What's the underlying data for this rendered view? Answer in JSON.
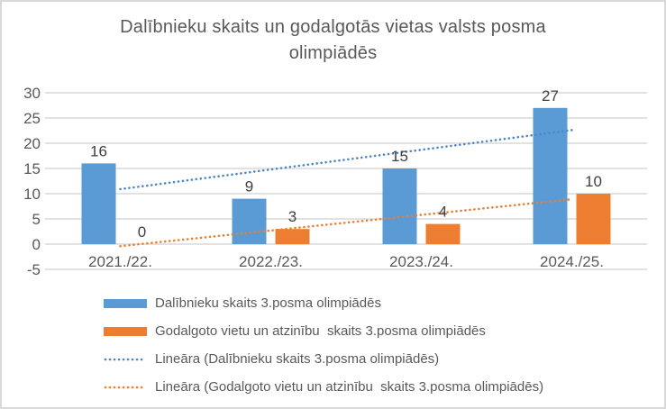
{
  "frame": {
    "background": "#FFFFFF",
    "border_color": "#D9D9D9"
  },
  "title": {
    "full": "Dalībnieku skaits un godalgotās vietas valsts posma olimpiādēs",
    "line1": "Dalībnieku skaits un godalgotās vietas valsts posma",
    "line2": "olimpiādēs",
    "color": "#595959"
  },
  "chart_data": {
    "type": "bar",
    "title": "Dalībnieku skaits un godalgotās vietas valsts posma olimpiādēs",
    "categories": [
      "2021./22.",
      "2022./23.",
      "2023./24.",
      "2024./25."
    ],
    "series": [
      {
        "name": "Dalībnieku skaits 3.posma olimpiādēs",
        "color": "#5B9BD5",
        "values": [
          16,
          9,
          15,
          27
        ]
      },
      {
        "name": "Godalgoto vietu un atzinību  skaits 3.posma olimpiādēs",
        "color": "#ED7D31",
        "values": [
          0,
          3,
          4,
          10
        ]
      }
    ],
    "trendlines": [
      {
        "name": "Lineāra (Dalībnieku skaits 3.posma olimpiādēs)",
        "series_index": 0,
        "fit": "linear",
        "style": "dotted",
        "color": "#4E87C8"
      },
      {
        "name": "Lineāra (Godalgoto vietu un atzinību  skaits 3.posma olimpiādēs)",
        "series_index": 1,
        "fit": "linear",
        "style": "dotted",
        "color": "#ED7D31"
      }
    ],
    "ylim": [
      -5,
      30
    ],
    "yticks": [
      30,
      25,
      20,
      15,
      10,
      5,
      0,
      -5
    ],
    "grid": true,
    "gridline_color": "#D9D9D9",
    "tick_label_color": "#595959",
    "category_label_color": "#595959",
    "data_labels_shown": true,
    "data_label_color": "#404040",
    "legend_position": "bottom-left",
    "xlabel": "",
    "ylabel": ""
  },
  "legend": {
    "items": [
      {
        "label": "Dalībnieku skaits 3.posma olimpiādēs",
        "swatch": "bar",
        "color": "#5B9BD5"
      },
      {
        "label": "Godalgoto vietu un atzinību  skaits 3.posma olimpiādēs",
        "swatch": "bar",
        "color": "#ED7D31"
      },
      {
        "label": "Lineāra (Dalībnieku skaits 3.posma olimpiādēs)",
        "swatch": "dotted-line",
        "color": "#4E87C8"
      },
      {
        "label": "Lineāra (Godalgoto vietu un atzinību  skaits 3.posma olimpiādēs)",
        "swatch": "dotted-line",
        "color": "#ED7D31"
      }
    ]
  }
}
